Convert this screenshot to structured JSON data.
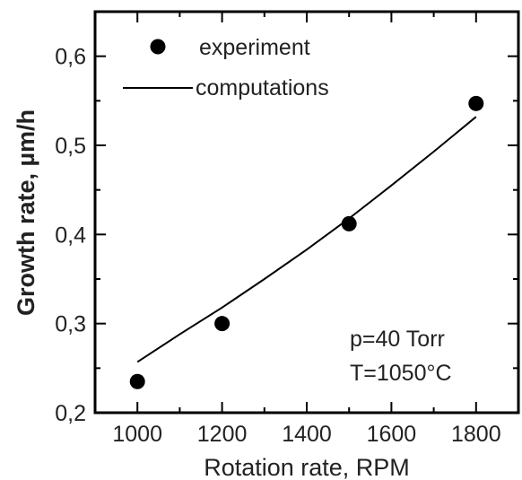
{
  "chart_data": {
    "type": "scatter",
    "xlabel": "Rotation rate, RPM",
    "ylabel": "Growth rate, µm/h",
    "xlim": [
      900,
      1900
    ],
    "ylim": [
      0.2,
      0.65
    ],
    "xticks": [
      1000,
      1200,
      1400,
      1600,
      1800
    ],
    "xtick_labels": [
      "1000",
      "1200",
      "1400",
      "1600",
      "1800"
    ],
    "yticks": [
      0.2,
      0.3,
      0.4,
      0.5,
      0.6
    ],
    "ytick_labels": [
      "0,2",
      "0,3",
      "0,4",
      "0,5",
      "0,6"
    ],
    "grid": false,
    "legend_position": "top-left",
    "series": [
      {
        "name": "experiment",
        "kind": "markers",
        "x": [
          1000,
          1200,
          1500,
          1800
        ],
        "y": [
          0.235,
          0.3,
          0.412,
          0.547
        ]
      },
      {
        "name": "computations",
        "kind": "line",
        "x": [
          1000,
          1100,
          1200,
          1300,
          1400,
          1500,
          1600,
          1700,
          1800
        ],
        "y": [
          0.257,
          0.288,
          0.318,
          0.35,
          0.383,
          0.418,
          0.455,
          0.493,
          0.532
        ]
      }
    ],
    "annotations": [
      "p=40 Torr",
      "T=1050°C"
    ]
  }
}
